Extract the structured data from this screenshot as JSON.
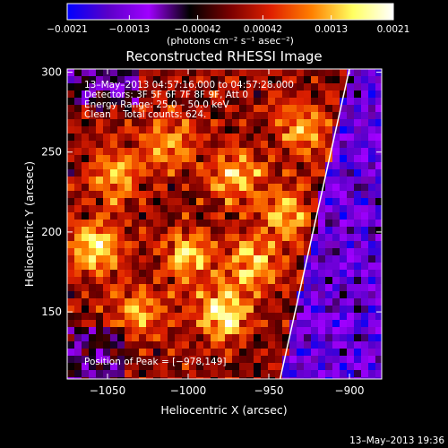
{
  "chart_data": {
    "type": "heatmap",
    "title": "Reconstructed RHESSI Image",
    "xlabel": "Heliocentric X (arcsec)",
    "ylabel": "Heliocentric Y (arcsec)",
    "xlim": [
      -1075,
      -880
    ],
    "ylim": [
      108,
      302
    ],
    "xticks": [
      -1050,
      -1000,
      -950,
      -900
    ],
    "xtick_labels": [
      "−1050",
      "−1000",
      "−950",
      "−900"
    ],
    "yticks": [
      150,
      200,
      250,
      300
    ],
    "ytick_labels": [
      "150",
      "200",
      "250",
      "300"
    ],
    "colorbar": {
      "range": [
        -0.0021,
        0.0021
      ],
      "ticks": [
        -0.0021,
        -0.0013,
        -0.00042,
        0.00042,
        0.0013,
        0.0021
      ],
      "tick_labels": [
        "−0.0021",
        "−0.0013",
        "−0.00042",
        "0.00042",
        "0.0013",
        "0.0021"
      ],
      "units": "(photons cm⁻² s⁻¹ asec⁻²)",
      "colormap": [
        "#0000ff",
        "#5a00c8",
        "#a000ff",
        "#000000",
        "#7a0000",
        "#e02000",
        "#ff8000",
        "#ffff60",
        "#ffffff"
      ]
    },
    "annotations": [
      "13–May–2013 04:57:16.000 to 04:57:28.000",
      "Detectors: 3F 5F 6F 7F 8F 9F, Att 0",
      "Energy Range: 25.0 – 50.0 keV",
      "Clean    Total counts: 624."
    ],
    "peak_label": "Position of Peak = [−978,149]",
    "peak": [
      -978,
      149
    ],
    "limb_line": [
      [
        -943,
        108
      ],
      [
        -900,
        302
      ]
    ],
    "bright_regions": [
      {
        "x": -978,
        "y": 149,
        "intensity": 1.0
      },
      {
        "x": -1057,
        "y": 190,
        "intensity": 0.9
      },
      {
        "x": -1045,
        "y": 235,
        "intensity": 0.7
      },
      {
        "x": -1000,
        "y": 185,
        "intensity": 0.75
      },
      {
        "x": -970,
        "y": 235,
        "intensity": 0.75
      },
      {
        "x": -960,
        "y": 180,
        "intensity": 0.7
      },
      {
        "x": -930,
        "y": 265,
        "intensity": 0.65
      },
      {
        "x": -1010,
        "y": 255,
        "intensity": 0.6
      },
      {
        "x": -1030,
        "y": 150,
        "intensity": 0.6
      },
      {
        "x": -940,
        "y": 210,
        "intensity": 0.6
      }
    ]
  },
  "footer": {
    "timestamp": "13–May–2013 19:36"
  }
}
